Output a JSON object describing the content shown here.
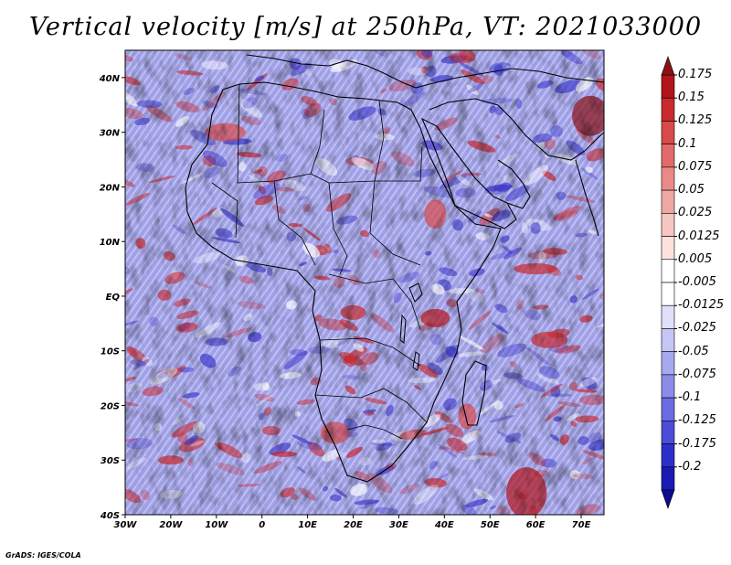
{
  "title": "Vertical velocity [m/s] at 250hPa, VT: 2021033000",
  "credit": "GrADS: IGES/COLA",
  "map": {
    "extent": {
      "lon": [
        -30,
        75
      ],
      "lat": [
        -40,
        45
      ]
    },
    "lat_ticks": [
      "40N",
      "30N",
      "20N",
      "10N",
      "EQ",
      "10S",
      "20S",
      "30S",
      "40S"
    ],
    "lon_ticks": [
      "30W",
      "20W",
      "10W",
      "0",
      "10E",
      "20E",
      "30E",
      "40E",
      "50E",
      "60E",
      "70E"
    ],
    "field": "vertical velocity",
    "colors": {
      "positive": "#c8262b",
      "negative": "#3a36c8",
      "neutral": "#ffffff"
    }
  },
  "colorbar": {
    "levels": [
      "0.175",
      "0.15",
      "0.125",
      "0.1",
      "0.075",
      "0.05",
      "0.025",
      "0.0125",
      "0.005",
      "-0.005",
      "-0.0125",
      "-0.025",
      "-0.05",
      "-0.075",
      "-0.1",
      "-0.125",
      "-0.175",
      "-0.2"
    ],
    "colors": [
      "#b21419",
      "#c92a2e",
      "#d84a4c",
      "#e26a6a",
      "#ea8a88",
      "#f0a8a5",
      "#f6c6c2",
      "#fbe2df",
      "#ffffff",
      "#ffffff",
      "#e0e0fb",
      "#c6c6f6",
      "#a8a8f0",
      "#8b8bea",
      "#6b6be2",
      "#4c4cd8",
      "#2e2ec9",
      "#1a1ab5"
    ]
  }
}
